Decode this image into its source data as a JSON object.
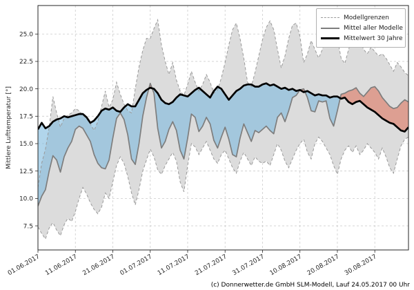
{
  "chart_data": {
    "type": "area",
    "title": "",
    "xlabel": "",
    "ylabel": "Mittlere Lufttemperatur [°]",
    "ylim": [
      5.3,
      27.6
    ],
    "y_ticks": [
      7.5,
      10.0,
      12.5,
      15.0,
      17.5,
      20.0,
      22.5,
      25.0
    ],
    "y_tick_labels": [
      "7.5",
      "10.0",
      "12.5",
      "15.0",
      "17.5",
      "20.0",
      "22.5",
      "25.0"
    ],
    "x_start_date": "01.06.2017",
    "x_end_date": "08.09.2017",
    "x_step_days": 1,
    "x_tick_days": [
      0,
      10,
      20,
      30,
      40,
      50,
      60,
      70,
      80,
      90
    ],
    "x_tick_labels": [
      "01.06.2017",
      "11.06.2017",
      "21.06.2017",
      "01.07.2017",
      "11.07.2017",
      "21.07.2017",
      "31.07.2017",
      "10.08.2017",
      "20.08.2017",
      "30.08.2017"
    ],
    "grid": true,
    "legend": {
      "position": "upper right",
      "entries": [
        {
          "label": "Modellgrenzen",
          "style": "dashed-gray"
        },
        {
          "label": "Mittel aller Modelle",
          "style": "solid-gray"
        },
        {
          "label": "Mittelwert 30 Jahre",
          "style": "thick-black"
        }
      ]
    },
    "series": [
      {
        "name": "Modellgrenzen obere Grenze",
        "values": [
          11.0,
          13.2,
          14.5,
          16.5,
          19.3,
          17.8,
          16.5,
          17.3,
          17.6,
          17.8,
          18.2,
          18.0,
          17.6,
          17.3,
          16.8,
          16.2,
          17.0,
          18.4,
          19.8,
          18.3,
          19.0,
          20.6,
          19.5,
          18.6,
          18.0,
          17.8,
          20.0,
          22.0,
          23.5,
          24.6,
          24.6,
          25.5,
          26.3,
          24.0,
          22.5,
          21.3,
          22.4,
          20.8,
          19.8,
          19.4,
          20.4,
          21.6,
          20.6,
          19.8,
          20.4,
          21.3,
          20.6,
          19.6,
          19.9,
          21.0,
          22.4,
          24.0,
          25.4,
          26.0,
          24.6,
          22.8,
          20.6,
          20.2,
          21.5,
          23.0,
          24.5,
          25.6,
          26.2,
          25.4,
          23.6,
          21.9,
          23.0,
          24.6,
          25.8,
          26.0,
          24.8,
          22.4,
          23.2,
          24.4,
          23.6,
          22.8,
          23.6,
          24.8,
          25.2,
          25.6,
          24.6,
          22.8,
          22.3,
          23.6,
          24.6,
          25.2,
          24.4,
          23.6,
          23.2,
          23.8,
          23.4,
          23.0,
          23.2,
          22.8,
          22.2,
          21.6,
          22.4,
          22.0,
          21.5,
          21.2
        ]
      },
      {
        "name": "Modellgrenzen untere Grenze",
        "values": [
          7.4,
          6.8,
          6.3,
          7.3,
          7.8,
          7.1,
          6.6,
          7.6,
          8.2,
          7.9,
          8.8,
          10.0,
          11.0,
          10.4,
          9.6,
          9.0,
          8.6,
          9.2,
          10.5,
          10.0,
          11.5,
          13.0,
          13.8,
          13.2,
          12.0,
          10.5,
          9.4,
          10.8,
          12.5,
          13.5,
          14.5,
          13.8,
          12.6,
          12.2,
          13.0,
          13.6,
          14.2,
          13.4,
          11.5,
          10.6,
          13.0,
          15.0,
          14.7,
          14.0,
          14.6,
          15.2,
          14.4,
          13.6,
          13.2,
          14.0,
          14.4,
          13.6,
          12.8,
          12.3,
          13.4,
          14.2,
          13.6,
          13.0,
          13.8,
          13.4,
          13.2,
          13.4,
          13.0,
          14.0,
          15.0,
          14.4,
          13.4,
          12.8,
          13.6,
          14.4,
          15.0,
          15.4,
          14.2,
          13.6,
          15.0,
          15.6,
          15.2,
          14.6,
          14.0,
          13.0,
          12.2,
          13.6,
          14.4,
          14.8,
          14.2,
          14.8,
          14.0,
          14.4,
          15.0,
          14.6,
          14.2,
          13.6,
          14.6,
          13.8,
          12.8,
          12.3,
          13.6,
          14.8,
          15.4,
          15.6
        ]
      },
      {
        "name": "Mittel aller Modelle",
        "values": [
          9.3,
          10.2,
          10.8,
          12.5,
          13.9,
          13.5,
          12.4,
          13.8,
          14.6,
          15.2,
          16.3,
          16.6,
          16.4,
          15.8,
          15.2,
          14.0,
          13.2,
          12.8,
          12.7,
          13.5,
          15.5,
          17.3,
          17.8,
          17.2,
          15.8,
          13.6,
          13.1,
          15.0,
          17.5,
          19.2,
          20.5,
          19.6,
          16.4,
          14.6,
          15.2,
          16.3,
          17.0,
          16.2,
          14.4,
          13.6,
          15.5,
          17.7,
          17.4,
          16.1,
          16.6,
          17.4,
          16.8,
          15.3,
          14.6,
          15.6,
          16.5,
          15.4,
          14.0,
          13.8,
          15.5,
          16.8,
          16.0,
          15.2,
          16.2,
          16.0,
          16.3,
          16.6,
          16.2,
          15.9,
          17.4,
          17.8,
          17.0,
          18.0,
          19.2,
          19.4,
          19.9,
          20.0,
          19.2,
          18.0,
          17.9,
          18.9,
          18.8,
          18.9,
          17.3,
          16.6,
          18.0,
          19.5,
          19.6,
          19.8,
          19.9,
          20.1,
          19.6,
          19.3,
          19.7,
          20.1,
          20.2,
          19.8,
          19.2,
          18.8,
          18.4,
          18.2,
          18.3,
          18.7,
          19.0,
          18.8
        ]
      },
      {
        "name": "Mittelwert 30 Jahre",
        "values": [
          16.3,
          16.9,
          16.4,
          16.6,
          17.0,
          17.2,
          17.3,
          17.5,
          17.4,
          17.5,
          17.6,
          17.7,
          17.7,
          17.4,
          16.9,
          17.1,
          17.5,
          18.0,
          18.2,
          18.1,
          18.3,
          18.0,
          17.9,
          18.3,
          18.6,
          18.4,
          18.4,
          19.0,
          19.6,
          19.9,
          20.1,
          20.0,
          19.6,
          19.0,
          18.7,
          18.6,
          18.8,
          19.2,
          19.5,
          19.4,
          19.3,
          19.6,
          19.9,
          20.1,
          19.8,
          19.5,
          19.2,
          19.8,
          20.2,
          20.0,
          19.5,
          19.0,
          19.4,
          19.8,
          20.0,
          20.3,
          20.4,
          20.4,
          20.2,
          20.2,
          20.4,
          20.5,
          20.3,
          20.4,
          20.2,
          20.0,
          20.1,
          19.9,
          20.0,
          19.8,
          19.9,
          19.7,
          19.8,
          19.6,
          19.4,
          19.5,
          19.4,
          19.4,
          19.2,
          19.3,
          19.3,
          19.1,
          19.2,
          18.8,
          18.6,
          18.8,
          18.9,
          18.6,
          18.3,
          18.1,
          17.9,
          17.6,
          17.3,
          17.1,
          16.9,
          16.8,
          16.5,
          16.2,
          16.1,
          16.5
        ]
      }
    ],
    "colors": {
      "band_fill": "#dcdcdc",
      "bounds_line": "#999999",
      "model_mean_line": "#7d7d7d",
      "climate_line": "#000000",
      "below_normal_fill": "rgba(125,185,222,0.60)",
      "above_normal_fill": "rgba(222,110,85,0.55)",
      "grid_line": "#cccccc",
      "axis_text": "#262626"
    },
    "caption": "(c) Donnerwetter.de GmbH SLM-Modell, Lauf 24.05.2017 00 Uhr"
  }
}
